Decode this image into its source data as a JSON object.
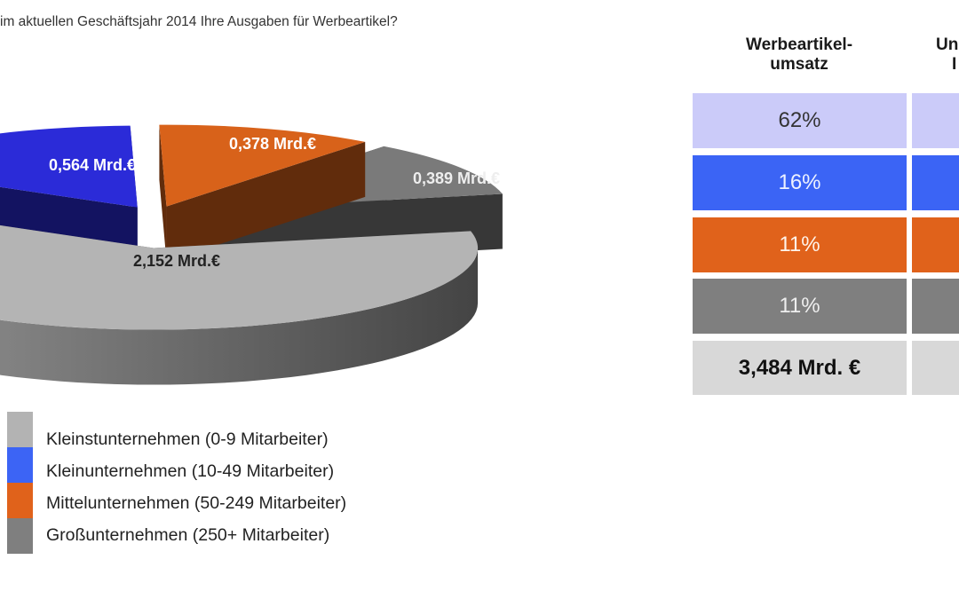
{
  "title": "im aktuellen Geschäftsjahr 2014 Ihre Ausgaben für Werbeartikel?",
  "chart_data": {
    "type": "pie",
    "style": "3d-exploded",
    "unit": "Mrd.€",
    "slices": [
      {
        "name": "Kleinstunternehmen (0-9 Mitarbeiter)",
        "value": 2.152,
        "label": "2,152 Mrd.€",
        "color": "#b4b4b4"
      },
      {
        "name": "Kleinunternehmen (10-49 Mitarbeiter)",
        "value": 0.564,
        "label": "0,564 Mrd.€",
        "color": "#2b2bd8"
      },
      {
        "name": "Mittelunternehmen (50-249 Mitarbeiter)",
        "value": 0.378,
        "label": "0,378 Mrd.€",
        "color": "#d8621a"
      },
      {
        "name": "Großunternehmen (250+ Mitarbeiter)",
        "value": 0.389,
        "label": "0,389 Mrd.€",
        "color": "#7a7a7a"
      }
    ],
    "legend_position": "bottom-left"
  },
  "legend": [
    {
      "label": "Kleinstunternehmen (0-9 Mitarbeiter)",
      "color": "#b3b3b3"
    },
    {
      "label": "Kleinunternehmen (10-49 Mitarbeiter)",
      "color": "#3c64f5"
    },
    {
      "label": "Mittelunternehmen (50-249 Mitarbeiter)",
      "color": "#e0621b"
    },
    {
      "label": "Großunternehmen (250+ Mitarbeiter)",
      "color": "#7f7f7f"
    }
  ],
  "table": {
    "headers": [
      {
        "line1": "Werbeartikel-",
        "line2": "umsatz"
      },
      {
        "line1": "Un",
        "line2": "I"
      }
    ],
    "rows": [
      {
        "value": "62%",
        "color": "#cbcbf9",
        "text_color": "#333333"
      },
      {
        "value": "16%",
        "color": "#3b64f5",
        "text_color": "#eef2ff"
      },
      {
        "value": "11%",
        "color": "#e0621b",
        "text_color": "#fff3ea"
      },
      {
        "value": "11%",
        "color": "#7f7f7f",
        "text_color": "#eeeeee"
      }
    ],
    "total": {
      "value": "3,484 Mrd. €",
      "color": "#d8d8d8"
    }
  }
}
